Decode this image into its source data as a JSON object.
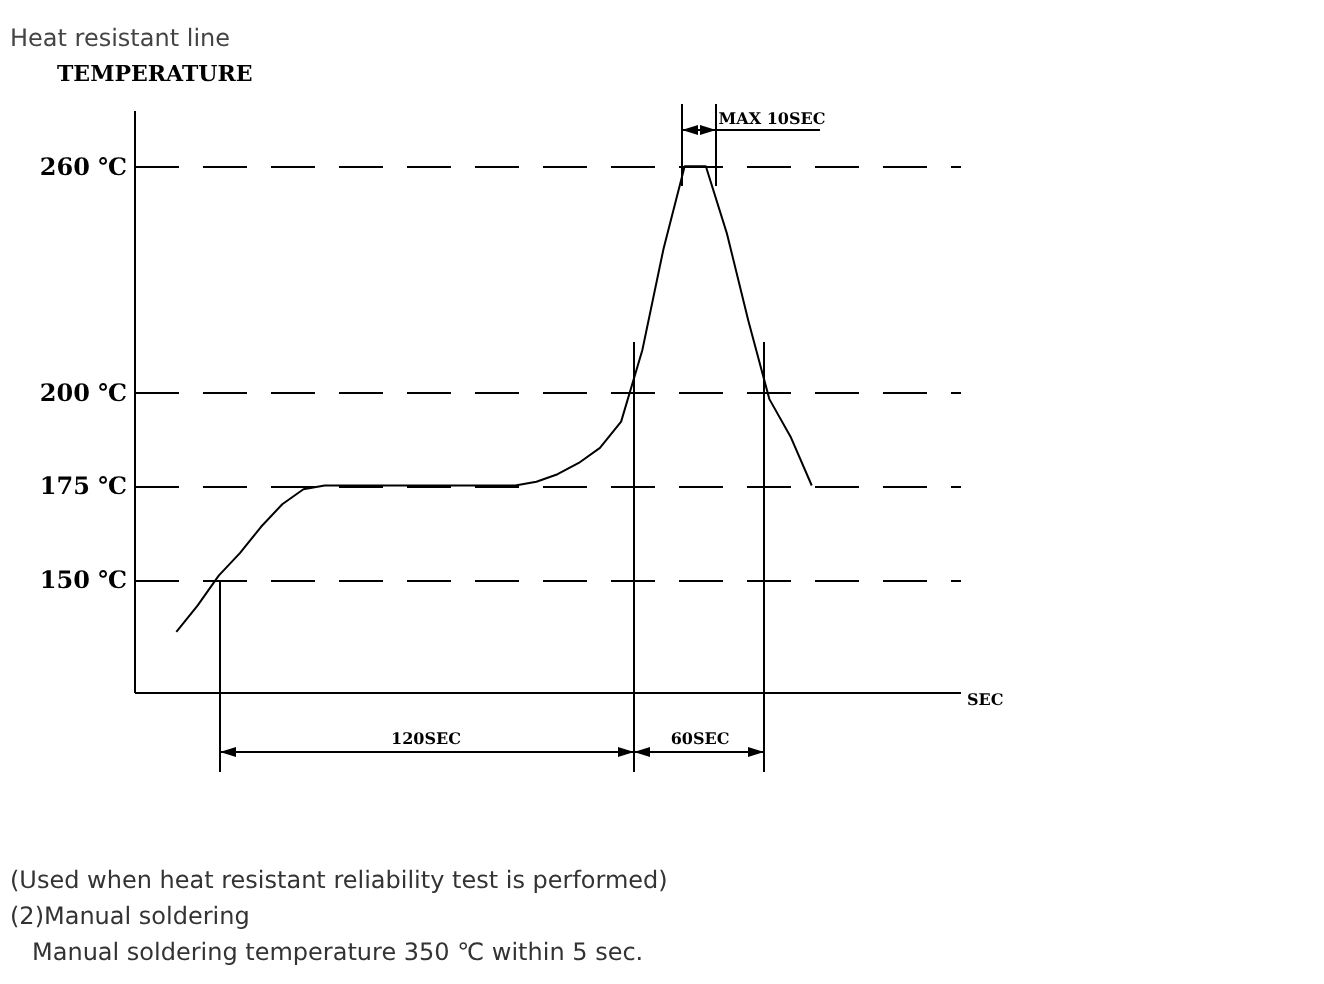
{
  "chart_data": {
    "type": "line",
    "title": "Heat resistant line",
    "ylabel": "TEMPERATURE",
    "xlabel": "SEC",
    "categories": [
      null,
      null,
      null,
      null,
      null,
      null,
      null,
      null,
      null,
      null,
      null,
      null,
      null,
      null,
      null,
      null,
      null,
      null,
      null,
      null,
      null,
      null,
      null,
      null,
      null,
      null,
      null,
      null,
      null,
      null,
      null,
      null,
      null,
      null,
      null,
      null,
      null,
      null,
      null,
      null
    ],
    "values": [
      null,
      null,
      136,
      143,
      151,
      157,
      164,
      170,
      174,
      175,
      175,
      175,
      175,
      175,
      175,
      175,
      175,
      175,
      175,
      176,
      178,
      181,
      185,
      192,
      211,
      238,
      260,
      260,
      242,
      219,
      198,
      188,
      175,
      null,
      null,
      null,
      null,
      null,
      null,
      null
    ],
    "color": "#000000",
    "ylim": [
      120,
      275
    ],
    "yticks": [
      {
        "value": 150,
        "label": "150 ℃"
      },
      {
        "value": 175,
        "label": "175 ℃"
      },
      {
        "value": 200,
        "label": "200 ℃"
      },
      {
        "value": 260,
        "label": "260 ℃"
      }
    ],
    "tick_labels": "y",
    "grid": "y",
    "annotations": [
      "MAX 10SEC",
      "120SEC",
      "60SEC",
      "(Used when heat resistant reliability test is performed)",
      "(2)Manual soldering",
      "Manual soldering temperature 350 ℃ within 5 sec."
    ]
  }
}
